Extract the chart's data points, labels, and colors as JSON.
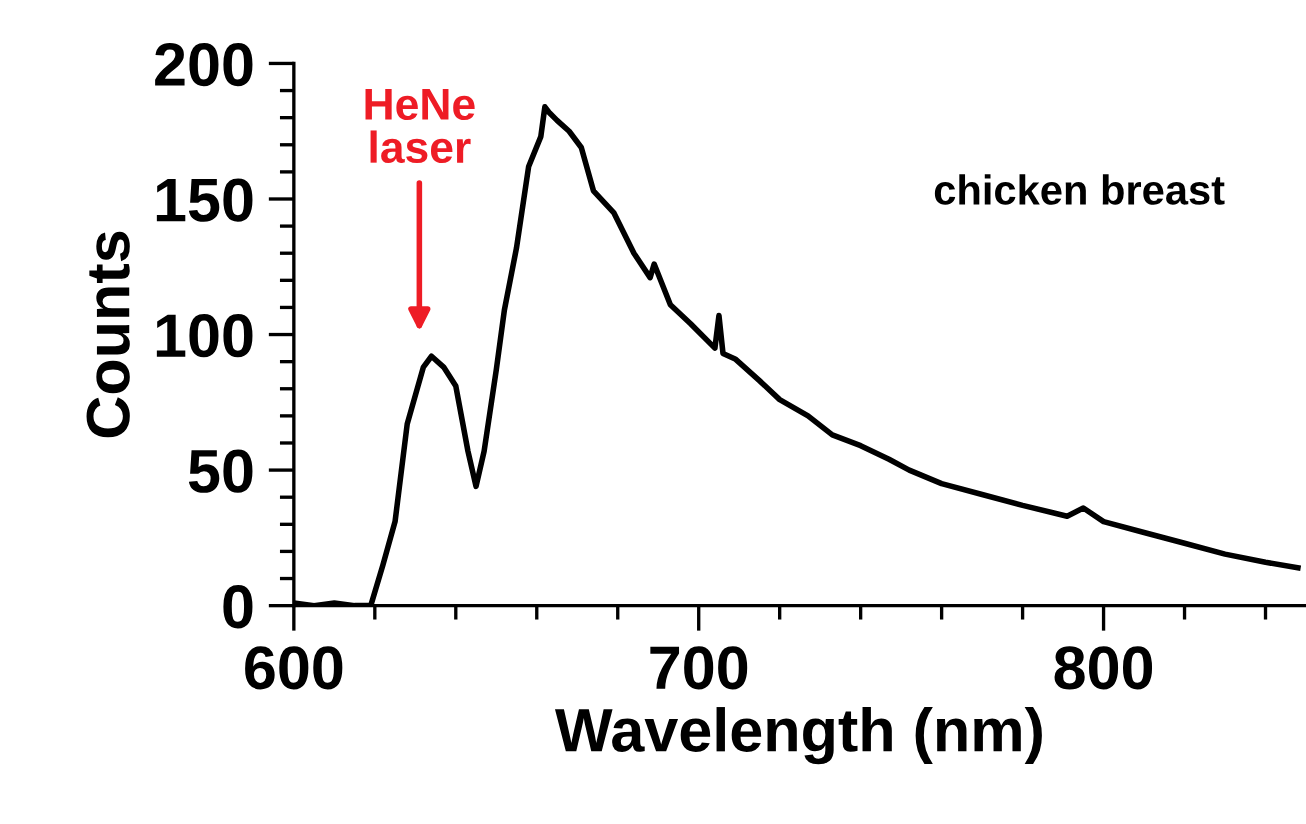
{
  "chart_data": {
    "type": "line",
    "xlabel": "Wavelength (nm)",
    "ylabel": "Counts",
    "series": [
      {
        "name": "chicken breast",
        "color": "#000000",
        "x": [
          600,
          605,
          610,
          615,
          619,
          622,
          625,
          628,
          632,
          634,
          637,
          640,
          643,
          645,
          647,
          650,
          652,
          655,
          658,
          661,
          662,
          663,
          665,
          668,
          671,
          674,
          679,
          684,
          688,
          689,
          693,
          698,
          704,
          705,
          706,
          709,
          715,
          720,
          727,
          733,
          740,
          747,
          752,
          760,
          770,
          780,
          791,
          795,
          800,
          810,
          820,
          830,
          840,
          848
        ],
        "values": [
          1,
          0,
          1,
          0,
          0,
          15,
          31,
          67,
          88,
          92,
          88,
          81,
          57,
          44,
          57,
          87,
          109,
          132,
          162,
          173,
          184,
          182,
          179,
          175,
          169,
          153,
          145,
          130,
          121,
          126,
          111,
          104,
          95,
          107,
          93,
          91,
          83,
          76,
          70,
          63,
          59,
          54,
          50,
          45,
          41,
          37,
          33,
          36,
          31,
          27,
          23,
          19,
          16,
          14
        ]
      }
    ],
    "xlim": [
      600,
      850
    ],
    "ylim": [
      0,
      200
    ],
    "xticks": [
      600,
      {
        "value": 620,
        "label": null
      },
      {
        "value": 640,
        "label": null
      },
      {
        "value": 660,
        "label": null
      },
      {
        "value": 680,
        "label": null
      },
      700,
      {
        "value": 720,
        "label": null
      },
      {
        "value": 740,
        "label": null
      },
      {
        "value": 760,
        "label": null
      },
      {
        "value": 780,
        "label": null
      },
      800,
      {
        "value": 820,
        "label": null
      },
      {
        "value": 840,
        "label": null
      }
    ],
    "yticks": [
      0,
      {
        "value": 10,
        "label": null
      },
      {
        "value": 20,
        "label": null
      },
      {
        "value": 30,
        "label": null
      },
      {
        "value": 40,
        "label": null
      },
      50,
      {
        "value": 60,
        "label": null
      },
      {
        "value": 70,
        "label": null
      },
      {
        "value": 80,
        "label": null
      },
      {
        "value": 90,
        "label": null
      },
      100,
      {
        "value": 110,
        "label": null
      },
      {
        "value": 120,
        "label": null
      },
      {
        "value": 130,
        "label": null
      },
      {
        "value": 140,
        "label": null
      },
      150,
      {
        "value": 160,
        "label": null
      },
      {
        "value": 170,
        "label": null
      },
      {
        "value": 180,
        "label": null
      },
      {
        "value": 190,
        "label": null
      },
      200
    ],
    "annotations": [
      "HeNe\nlaser"
    ],
    "grid": false,
    "legend": false,
    "marker": "none",
    "line_style": "solid"
  }
}
